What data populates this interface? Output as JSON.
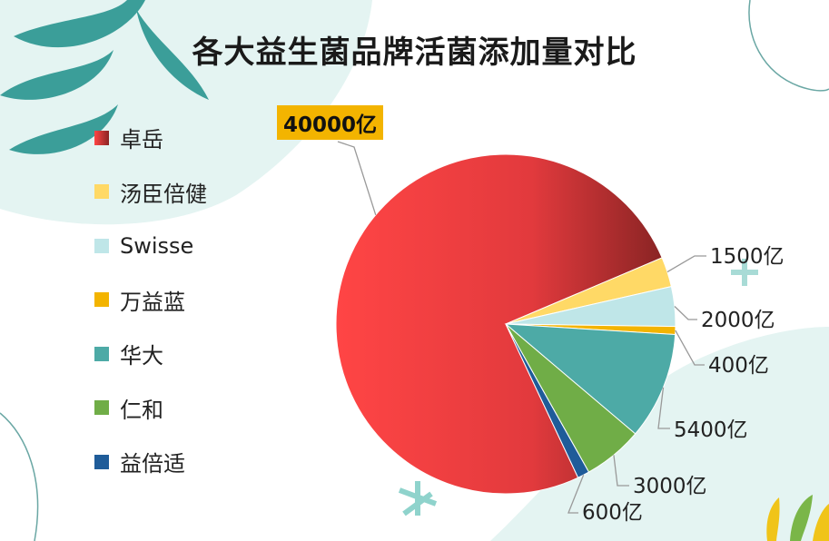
{
  "chart_data": {
    "type": "pie",
    "title": "各大益生菌品牌活菌添加量对比",
    "legend_position": "left",
    "categories": [
      "卓岳",
      "汤臣倍健",
      "Swisse",
      "万益蓝",
      "华大",
      "仁和",
      "益倍适"
    ],
    "values": [
      40000,
      1500,
      2000,
      400,
      5400,
      3000,
      600
    ],
    "data_labels": [
      "40000亿",
      "1500亿",
      "2000亿",
      "400亿",
      "5400亿",
      "3000亿",
      "600亿"
    ],
    "colors": [
      "#e8383c",
      "#ffd966",
      "#bfe6e8",
      "#f3b400",
      "#4daaa6",
      "#70ad47",
      "#1f5c99"
    ]
  }
}
